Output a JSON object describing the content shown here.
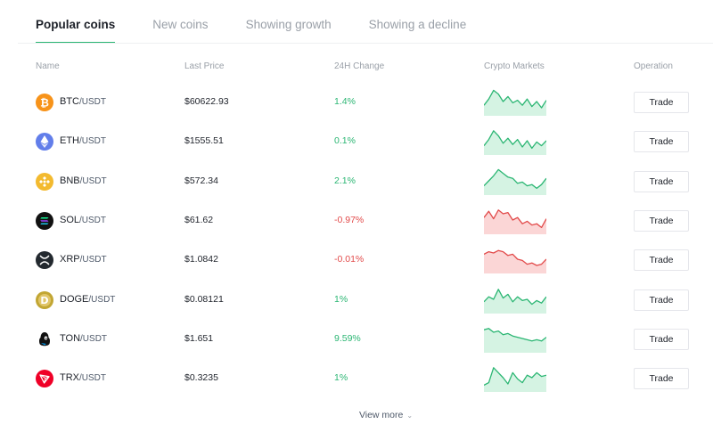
{
  "tabs": [
    {
      "label": "Popular coins"
    },
    {
      "label": "New coins"
    },
    {
      "label": "Showing growth"
    },
    {
      "label": "Showing a decline"
    }
  ],
  "active_tab": "Popular coins",
  "columns": {
    "name": "Name",
    "last_price": "Last Price",
    "change": "24H Change",
    "markets": "Crypto Markets",
    "operation": "Operation"
  },
  "colors": {
    "up": "#2bb673",
    "down": "#e24a4a",
    "up_fill": "#d5f3e3",
    "down_fill": "#fbd6d6"
  },
  "rows": [
    {
      "base": "BTC",
      "quote": "/USDT",
      "price": "$60622.93",
      "change": "1.4%",
      "dir": "up",
      "icon": "bitcoin-icon",
      "icon_color": "#f7931a",
      "trade": "Trade",
      "spark": [
        0.35,
        0.6,
        0.95,
        0.8,
        0.5,
        0.7,
        0.45,
        0.55,
        0.35,
        0.6,
        0.3,
        0.5,
        0.25,
        0.55
      ]
    },
    {
      "base": "ETH",
      "quote": "/USDT",
      "price": "$1555.51",
      "change": "0.1%",
      "dir": "up",
      "icon": "ethereum-icon",
      "icon_color": "#627eea",
      "trade": "Trade",
      "spark": [
        0.3,
        0.55,
        0.9,
        0.7,
        0.4,
        0.6,
        0.35,
        0.55,
        0.25,
        0.5,
        0.2,
        0.45,
        0.3,
        0.5
      ]
    },
    {
      "base": "BNB",
      "quote": "/USDT",
      "price": "$572.34",
      "change": "2.1%",
      "dir": "up",
      "icon": "binance-icon",
      "icon_color": "#f3ba2f",
      "trade": "Trade",
      "spark": [
        0.3,
        0.5,
        0.7,
        0.95,
        0.8,
        0.65,
        0.6,
        0.4,
        0.45,
        0.3,
        0.35,
        0.2,
        0.35,
        0.6
      ]
    },
    {
      "base": "SOL",
      "quote": "/USDT",
      "price": "$61.62",
      "change": "-0.97%",
      "dir": "down",
      "icon": "solana-icon",
      "icon_color": "#111111",
      "trade": "Trade",
      "spark": [
        0.6,
        0.85,
        0.55,
        0.9,
        0.75,
        0.8,
        0.5,
        0.6,
        0.35,
        0.45,
        0.3,
        0.35,
        0.2,
        0.55
      ]
    },
    {
      "base": "XRP",
      "quote": "/USDT",
      "price": "$1.0842",
      "change": "-0.01%",
      "dir": "down",
      "icon": "xrp-icon",
      "icon_color": "#23292f",
      "trade": "Trade",
      "spark": [
        0.7,
        0.8,
        0.75,
        0.85,
        0.8,
        0.65,
        0.7,
        0.5,
        0.45,
        0.3,
        0.35,
        0.25,
        0.3,
        0.5
      ]
    },
    {
      "base": "DOGE",
      "quote": "/USDT",
      "price": "$0.08121",
      "change": "1%",
      "dir": "up",
      "icon": "dogecoin-icon",
      "icon_color": "#c2a633",
      "trade": "Trade",
      "spark": [
        0.4,
        0.6,
        0.5,
        0.9,
        0.55,
        0.7,
        0.4,
        0.6,
        0.45,
        0.5,
        0.3,
        0.45,
        0.35,
        0.6
      ]
    },
    {
      "base": "TON",
      "quote": "/USDT",
      "price": "$1.651",
      "change": "9.59%",
      "dir": "up",
      "icon": "toncoin-icon",
      "icon_color": "#111111",
      "trade": "Trade",
      "spark": [
        0.85,
        0.9,
        0.75,
        0.8,
        0.65,
        0.7,
        0.6,
        0.55,
        0.5,
        0.45,
        0.4,
        0.45,
        0.4,
        0.55
      ]
    },
    {
      "base": "TRX",
      "quote": "/USDT",
      "price": "$0.3235",
      "change": "1%",
      "dir": "up",
      "icon": "tron-icon",
      "icon_color": "#ef0027",
      "trade": "Trade",
      "spark": [
        0.2,
        0.3,
        0.9,
        0.7,
        0.5,
        0.25,
        0.7,
        0.45,
        0.3,
        0.6,
        0.5,
        0.7,
        0.55,
        0.6
      ]
    }
  ],
  "view_more": "View more",
  "view_more_icon": "chevron-down-icon"
}
